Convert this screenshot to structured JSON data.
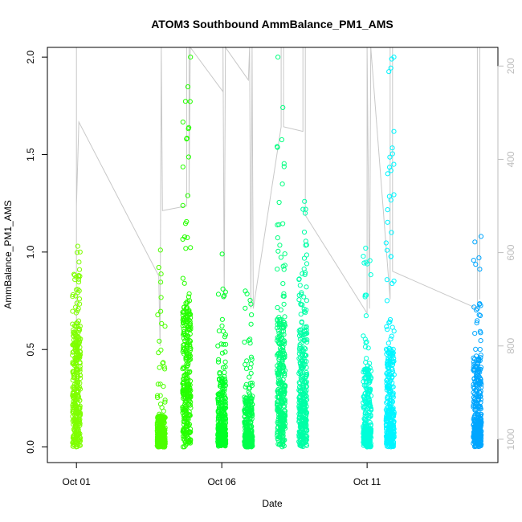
{
  "chart_data": {
    "type": "scatter",
    "title": "ATOM3 Southbound AmmBalance_PM1_AMS",
    "xlabel": "Date",
    "ylabel": "AmmBalance_PM1_AMS",
    "x_ticks": [
      "Oct 01",
      "Oct 06",
      "Oct 11"
    ],
    "y_ticks": [
      "0.0",
      "0.5",
      "1.0",
      "1.5",
      "2.0"
    ],
    "y2_ticks": [
      "200",
      "400",
      "600",
      "800",
      "1000"
    ],
    "xlim": [
      "2016-09-30T00:00",
      "2016-10-15T12:00"
    ],
    "ylim": [
      0,
      2.05
    ],
    "y2lim": [
      160,
      1050
    ],
    "y2_reversed": true,
    "colors": {
      "line": "#c8c8c8",
      "axis": "#000000",
      "right_axis": "#bdbdbd"
    },
    "clusters": [
      {
        "time": "2016-10-01T00:00",
        "p50": 0.3,
        "p90": 0.62,
        "max": 1.03,
        "color": "#7fff00"
      },
      {
        "time": "2016-10-03T22:00",
        "p50": 0.06,
        "p90": 0.16,
        "max": 1.01,
        "color": "#4cff00"
      },
      {
        "time": "2016-10-04T19:00",
        "p50": 0.3,
        "p90": 0.7,
        "max": 2.0,
        "color": "#26ff00"
      },
      {
        "time": "2016-10-06T00:00",
        "p50": 0.1,
        "p90": 0.35,
        "max": 0.99,
        "color": "#00ff26"
      },
      {
        "time": "2016-10-06T22:00",
        "p50": 0.07,
        "p90": 0.25,
        "max": 0.8,
        "color": "#00ff4c"
      },
      {
        "time": "2016-10-08T01:00",
        "p50": 0.3,
        "p90": 0.65,
        "max": 2.0,
        "color": "#00ff7f"
      },
      {
        "time": "2016-10-08T19:00",
        "p50": 0.25,
        "p90": 0.6,
        "max": 1.26,
        "color": "#00ffa6"
      },
      {
        "time": "2016-10-11T00:00",
        "p50": 0.1,
        "p90": 0.4,
        "max": 1.02,
        "color": "#00ffd9"
      },
      {
        "time": "2016-10-11T19:00",
        "p50": 0.18,
        "p90": 0.5,
        "max": 2.0,
        "color": "#00f5ff"
      },
      {
        "time": "2016-10-14T19:00",
        "p50": 0.15,
        "p90": 0.45,
        "max": 1.08,
        "color": "#00a6ff"
      }
    ],
    "right_series": {
      "name": "",
      "points": [
        [
          "2016-10-01T00:00",
          950
        ],
        [
          "2016-10-01T00:00",
          160
        ],
        [
          "2016-10-01T00:00",
          500
        ],
        [
          "2016-10-01T02:00",
          320
        ],
        [
          "2016-10-03T20:00",
          650
        ],
        [
          "2016-10-03T21:00",
          800
        ],
        [
          "2016-10-03T22:00",
          160
        ],
        [
          "2016-10-03T23:00",
          510
        ],
        [
          "2016-10-04T19:00",
          500
        ],
        [
          "2016-10-04T19:00",
          160
        ],
        [
          "2016-10-04T21:00",
          160
        ],
        [
          "2016-10-04T21:00",
          480
        ],
        [
          "2016-10-04T22:00",
          160
        ],
        [
          "2016-10-06T01:00",
          255
        ],
        [
          "2016-10-06T01:00",
          160
        ],
        [
          "2016-10-06T02:00",
          700
        ],
        [
          "2016-10-06T03:00",
          160
        ],
        [
          "2016-10-06T22:00",
          230
        ],
        [
          "2016-10-06T23:00",
          160
        ],
        [
          "2016-10-07T00:00",
          720
        ],
        [
          "2016-10-07T01:00",
          160
        ],
        [
          "2016-10-07T02:00",
          720
        ],
        [
          "2016-10-08T01:00",
          330
        ],
        [
          "2016-10-08T01:00",
          160
        ],
        [
          "2016-10-08T03:00",
          160
        ],
        [
          "2016-10-08T03:00",
          330
        ],
        [
          "2016-10-08T19:00",
          340
        ],
        [
          "2016-10-08T19:00",
          160
        ],
        [
          "2016-10-08T21:00",
          160
        ],
        [
          "2016-10-08T21:00",
          520
        ],
        [
          "2016-10-11T00:00",
          730
        ],
        [
          "2016-10-11T00:00",
          160
        ],
        [
          "2016-10-11T02:00",
          720
        ],
        [
          "2016-10-11T03:00",
          160
        ],
        [
          "2016-10-11T19:00",
          700
        ],
        [
          "2016-10-11T19:00",
          160
        ],
        [
          "2016-10-11T21:00",
          160
        ],
        [
          "2016-10-11T21:00",
          640
        ],
        [
          "2016-10-14T19:00",
          720
        ],
        [
          "2016-10-14T19:00",
          160
        ],
        [
          "2016-10-14T21:00",
          160
        ],
        [
          "2016-10-14T21:00",
          700
        ]
      ]
    }
  }
}
